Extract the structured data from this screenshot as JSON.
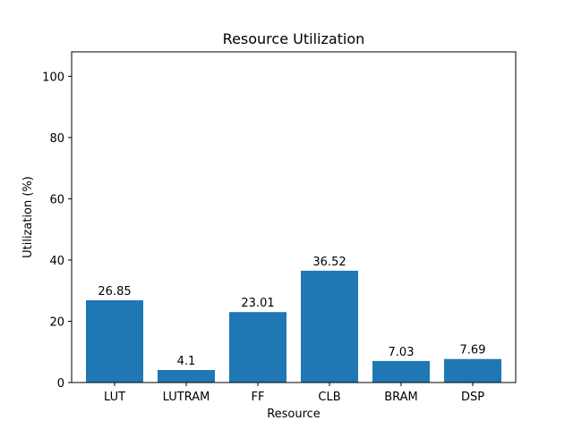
{
  "chart_data": {
    "type": "bar",
    "title": "Resource Utilization",
    "xlabel": "Resource",
    "ylabel": "Utilization (%)",
    "categories": [
      "LUT",
      "LUTRAM",
      "FF",
      "CLB",
      "BRAM",
      "DSP"
    ],
    "values": [
      26.85,
      4.1,
      23.01,
      36.52,
      7.03,
      7.69
    ],
    "value_labels": [
      "26.85",
      "4.1",
      "23.01",
      "36.52",
      "7.03",
      "7.69"
    ],
    "ylim": [
      0,
      108
    ],
    "yticks": [
      0,
      20,
      40,
      60,
      80,
      100
    ],
    "grid": false,
    "bar_color": "#1f77b4"
  }
}
